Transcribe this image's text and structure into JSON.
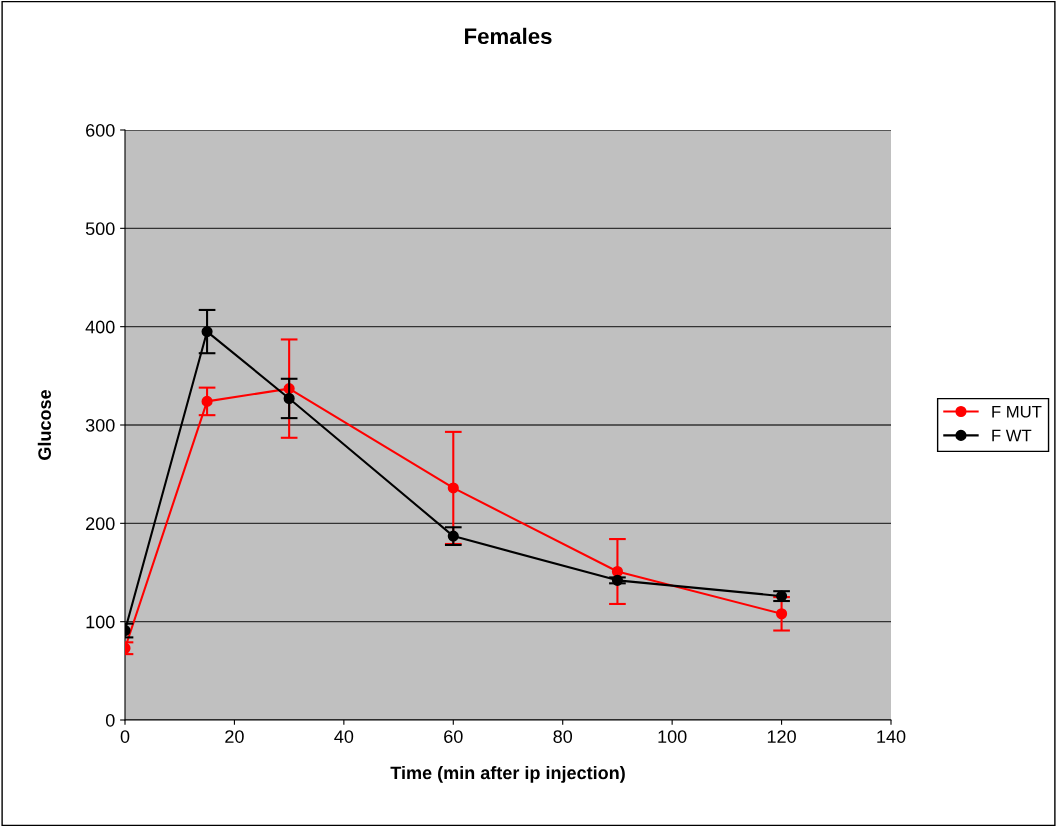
{
  "chart_data": {
    "type": "line",
    "title": "Females",
    "xlabel": "Time (min after ip injection)",
    "ylabel": "Glucose",
    "x": [
      0,
      15,
      30,
      60,
      90,
      120
    ],
    "series": [
      {
        "name": "F MUT",
        "color": "#ff0000",
        "values": [
          73,
          324,
          337,
          236,
          151,
          108
        ],
        "errors": [
          6,
          14,
          50,
          57,
          33,
          17
        ]
      },
      {
        "name": "F WT",
        "color": "#000000",
        "values": [
          91,
          395,
          327,
          187,
          142,
          126
        ],
        "errors": [
          7,
          22,
          20,
          9,
          3,
          5
        ]
      }
    ],
    "xlim": [
      0,
      140
    ],
    "xticks": [
      0,
      20,
      40,
      60,
      80,
      100,
      120,
      140
    ],
    "ylim": [
      0,
      600
    ],
    "yticks": [
      0,
      100,
      200,
      300,
      400,
      500,
      600
    ],
    "grid": "y",
    "legend": "right",
    "marker": "circle",
    "line_style": "solid"
  }
}
